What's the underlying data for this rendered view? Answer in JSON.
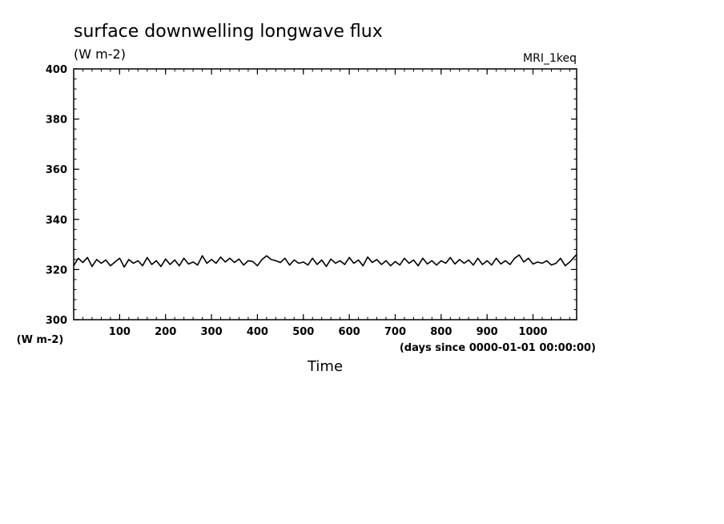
{
  "chart_data": {
    "type": "line",
    "title": "surface downwelling longwave flux",
    "units": "(W m-2)",
    "model": "MRI_1keq",
    "xlabel": "Time",
    "x_units": "(days since 0000-01-01 00:00:00)",
    "ylabel": "(W m-2)",
    "xlim": [
      0,
      1095
    ],
    "ylim": [
      300,
      400
    ],
    "xticks": [
      100,
      200,
      300,
      400,
      500,
      600,
      700,
      800,
      900,
      1000
    ],
    "yticks": [
      300,
      320,
      340,
      360,
      380,
      400
    ],
    "grid": false,
    "legend": "none",
    "line_color": "#000000",
    "series": [
      {
        "x": [
          0,
          10,
          20,
          30,
          40,
          50,
          60,
          70,
          80,
          90,
          100,
          110,
          120,
          130,
          140,
          150,
          160,
          170,
          180,
          190,
          200,
          210,
          220,
          230,
          240,
          250,
          260,
          270,
          280,
          290,
          300,
          310,
          320,
          330,
          340,
          350,
          360,
          370,
          380,
          390,
          400,
          410,
          420,
          430,
          440,
          450,
          460,
          470,
          480,
          490,
          500,
          510,
          520,
          530,
          540,
          550,
          560,
          570,
          580,
          590,
          600,
          610,
          620,
          630,
          640,
          650,
          660,
          670,
          680,
          690,
          700,
          710,
          720,
          730,
          740,
          750,
          760,
          770,
          780,
          790,
          800,
          810,
          820,
          830,
          840,
          850,
          860,
          870,
          880,
          890,
          900,
          910,
          920,
          930,
          940,
          950,
          960,
          970,
          980,
          990,
          1000,
          1010,
          1020,
          1030,
          1040,
          1050,
          1060,
          1070,
          1080,
          1090,
          1095
        ],
        "values": [
          321.5,
          324.5,
          322.8,
          324.8,
          321.2,
          324.0,
          322.5,
          323.8,
          321.5,
          323.0,
          324.5,
          321.0,
          324.0,
          322.5,
          323.5,
          321.5,
          324.8,
          322.0,
          323.5,
          321.2,
          324.2,
          322.0,
          323.8,
          321.5,
          324.5,
          322.2,
          323.0,
          321.8,
          325.5,
          322.5,
          324.0,
          322.5,
          325.0,
          323.0,
          324.5,
          322.8,
          324.2,
          321.8,
          323.5,
          323.2,
          321.5,
          324.0,
          325.5,
          324.0,
          323.5,
          322.8,
          324.5,
          321.8,
          323.8,
          322.5,
          323.0,
          321.8,
          324.5,
          322.0,
          323.8,
          321.2,
          324.2,
          322.5,
          323.5,
          322.0,
          324.8,
          322.5,
          323.8,
          321.5,
          325.0,
          322.8,
          324.0,
          322.0,
          323.5,
          321.5,
          323.2,
          321.8,
          324.5,
          322.5,
          323.8,
          321.5,
          324.5,
          322.2,
          323.5,
          321.8,
          323.5,
          322.5,
          324.8,
          322.2,
          324.0,
          322.5,
          323.8,
          321.8,
          324.5,
          322.0,
          323.5,
          321.8,
          324.5,
          322.2,
          323.5,
          322.0,
          324.5,
          325.8,
          323.0,
          324.5,
          322.2,
          323.0,
          322.5,
          323.5,
          321.8,
          322.5,
          324.5,
          321.5,
          323.0,
          325.0,
          326.0
        ]
      }
    ]
  }
}
